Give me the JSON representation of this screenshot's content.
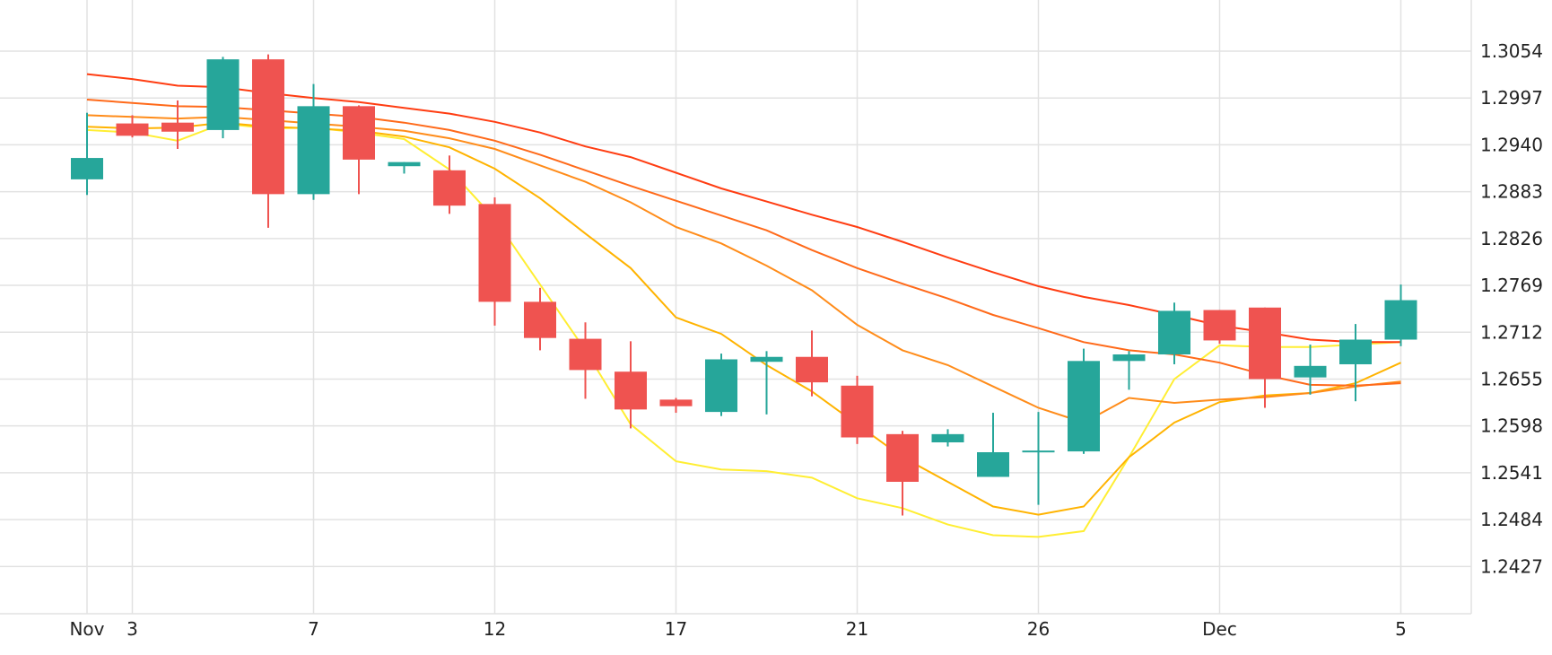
{
  "chart_data": {
    "type": "candlestick",
    "x_tick_labels": [
      {
        "label": "Nov",
        "index": 0
      },
      {
        "label": "3",
        "index": 1
      },
      {
        "label": "7",
        "index": 5
      },
      {
        "label": "12",
        "index": 9
      },
      {
        "label": "17",
        "index": 13
      },
      {
        "label": "21",
        "index": 17
      },
      {
        "label": "26",
        "index": 21
      },
      {
        "label": "Dec",
        "index": 25
      },
      {
        "label": "5",
        "index": 29
      }
    ],
    "y_ticks": [
      "1.3054",
      "1.2997",
      "1.2940",
      "1.2883",
      "1.2826",
      "1.2769",
      "1.2712",
      "1.2655",
      "1.2598",
      "1.2541",
      "1.2484",
      "1.2427"
    ],
    "ylim": [
      1.23695,
      1.31162
    ],
    "grid": true,
    "colors": {
      "up": "#26a69a",
      "down": "#ef5350",
      "grid": "#e2e2e2"
    },
    "candles": [
      {
        "o": 1.2898,
        "h": 1.2979,
        "l": 1.2879,
        "c": 1.2924
      },
      {
        "o": 1.2966,
        "h": 1.2976,
        "l": 1.2949,
        "c": 1.2951
      },
      {
        "o": 1.2967,
        "h": 1.2994,
        "l": 1.2935,
        "c": 1.2956
      },
      {
        "o": 1.2958,
        "h": 1.3047,
        "l": 1.2948,
        "c": 1.3044
      },
      {
        "o": 1.3044,
        "h": 1.305,
        "l": 1.2839,
        "c": 1.288
      },
      {
        "o": 1.288,
        "h": 1.3014,
        "l": 1.2873,
        "c": 1.2987
      },
      {
        "o": 1.2987,
        "h": 1.2988,
        "l": 1.288,
        "c": 1.2922
      },
      {
        "o": 1.2914,
        "h": 1.2919,
        "l": 1.2905,
        "c": 1.2919
      },
      {
        "o": 1.2909,
        "h": 1.2927,
        "l": 1.2856,
        "c": 1.2866
      },
      {
        "o": 1.2868,
        "h": 1.2876,
        "l": 1.272,
        "c": 1.2749
      },
      {
        "o": 1.2749,
        "h": 1.2766,
        "l": 1.269,
        "c": 1.2705
      },
      {
        "o": 1.2704,
        "h": 1.2724,
        "l": 1.2631,
        "c": 1.2666
      },
      {
        "o": 1.2664,
        "h": 1.2701,
        "l": 1.2595,
        "c": 1.2618
      },
      {
        "o": 1.263,
        "h": 1.2632,
        "l": 1.2614,
        "c": 1.2622
      },
      {
        "o": 1.2615,
        "h": 1.2686,
        "l": 1.261,
        "c": 1.2679
      },
      {
        "o": 1.2676,
        "h": 1.2689,
        "l": 1.2612,
        "c": 1.2682
      },
      {
        "o": 1.2682,
        "h": 1.2714,
        "l": 1.2634,
        "c": 1.2651
      },
      {
        "o": 1.2647,
        "h": 1.2659,
        "l": 1.2576,
        "c": 1.2584
      },
      {
        "o": 1.2588,
        "h": 1.2592,
        "l": 1.2489,
        "c": 1.253
      },
      {
        "o": 1.2578,
        "h": 1.2594,
        "l": 1.2573,
        "c": 1.2588
      },
      {
        "o": 1.2536,
        "h": 1.2614,
        "l": 1.2536,
        "c": 1.2566
      },
      {
        "o": 1.2567,
        "h": 1.2615,
        "l": 1.2502,
        "c": 1.2568
      },
      {
        "o": 1.2567,
        "h": 1.2692,
        "l": 1.2564,
        "c": 1.2677
      },
      {
        "o": 1.2677,
        "h": 1.2689,
        "l": 1.2642,
        "c": 1.2685
      },
      {
        "o": 1.2685,
        "h": 1.2748,
        "l": 1.2673,
        "c": 1.2738
      },
      {
        "o": 1.2739,
        "h": 1.2739,
        "l": 1.2698,
        "c": 1.2702
      },
      {
        "o": 1.2742,
        "h": 1.2742,
        "l": 1.262,
        "c": 1.2655
      },
      {
        "o": 1.2657,
        "h": 1.2697,
        "l": 1.2636,
        "c": 1.2671
      },
      {
        "o": 1.2673,
        "h": 1.2722,
        "l": 1.2628,
        "c": 1.2703
      },
      {
        "o": 1.2703,
        "h": 1.277,
        "l": 1.2695,
        "c": 1.2751
      }
    ],
    "moving_averages": [
      {
        "color": "#ffee33",
        "values": [
          1.2958,
          1.2955,
          1.2945,
          1.2966,
          1.296,
          1.2961,
          1.2955,
          1.2947,
          1.291,
          1.285,
          1.277,
          1.269,
          1.26,
          1.2555,
          1.2545,
          1.2543,
          1.2535,
          1.251,
          1.2498,
          1.2478,
          1.2465,
          1.2463,
          1.247,
          1.256,
          1.2655,
          1.2696,
          1.2694,
          1.2694,
          1.2697,
          1.27
        ]
      },
      {
        "color": "#ffb300",
        "values": [
          1.2962,
          1.296,
          1.2961,
          1.2967,
          1.2962,
          1.296,
          1.2957,
          1.295,
          1.2937,
          1.2911,
          1.2875,
          1.2832,
          1.279,
          1.273,
          1.271,
          1.2672,
          1.264,
          1.26,
          1.256,
          1.253,
          1.25,
          1.249,
          1.25,
          1.256,
          1.2602,
          1.2627,
          1.2635,
          1.2638,
          1.265,
          1.2675
        ]
      },
      {
        "color": "#ff8c1a",
        "values": [
          1.2976,
          1.2974,
          1.2972,
          1.2974,
          1.297,
          1.2966,
          1.2962,
          1.2957,
          1.2948,
          1.2935,
          1.2915,
          1.2895,
          1.287,
          1.284,
          1.282,
          1.2793,
          1.2763,
          1.2721,
          1.269,
          1.2672,
          1.2646,
          1.262,
          1.2602,
          1.2632,
          1.2626,
          1.263,
          1.2633,
          1.2638,
          1.2646,
          1.2652
        ]
      },
      {
        "color": "#ff6a1a",
        "values": [
          1.2995,
          1.2991,
          1.2987,
          1.2986,
          1.2982,
          1.2978,
          1.2974,
          1.2967,
          1.2958,
          1.2945,
          1.2928,
          1.2909,
          1.289,
          1.2872,
          1.2854,
          1.2836,
          1.2812,
          1.279,
          1.2771,
          1.2753,
          1.2733,
          1.2717,
          1.27,
          1.269,
          1.2685,
          1.2675,
          1.266,
          1.2648,
          1.2647,
          1.265
        ]
      },
      {
        "color": "#ff3d12",
        "values": [
          1.3026,
          1.302,
          1.3012,
          1.301,
          1.3003,
          1.2997,
          1.2992,
          1.2985,
          1.2978,
          1.2968,
          1.2955,
          1.2938,
          1.2925,
          1.2906,
          1.2887,
          1.2871,
          1.2855,
          1.284,
          1.2822,
          1.2803,
          1.2785,
          1.2768,
          1.2755,
          1.2745,
          1.2733,
          1.272,
          1.2712,
          1.2703,
          1.27,
          1.27
        ]
      }
    ]
  }
}
